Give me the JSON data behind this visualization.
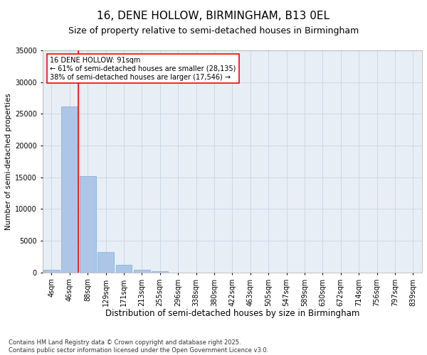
{
  "title": "16, DENE HOLLOW, BIRMINGHAM, B13 0EL",
  "subtitle": "Size of property relative to semi-detached houses in Birmingham",
  "xlabel": "Distribution of semi-detached houses by size in Birmingham",
  "ylabel": "Number of semi-detached properties",
  "categories": [
    "4sqm",
    "46sqm",
    "88sqm",
    "129sqm",
    "171sqm",
    "213sqm",
    "255sqm",
    "296sqm",
    "338sqm",
    "380sqm",
    "422sqm",
    "463sqm",
    "505sqm",
    "547sqm",
    "589sqm",
    "630sqm",
    "672sqm",
    "714sqm",
    "756sqm",
    "797sqm",
    "839sqm"
  ],
  "values": [
    400,
    26100,
    15200,
    3200,
    1200,
    400,
    180,
    20,
    0,
    0,
    0,
    0,
    0,
    0,
    0,
    0,
    0,
    0,
    0,
    0,
    0
  ],
  "bar_color": "#adc6e8",
  "bar_edge_color": "#7aabcf",
  "vline_x_index": 2,
  "vline_color": "red",
  "ylim": [
    0,
    35000
  ],
  "yticks": [
    0,
    5000,
    10000,
    15000,
    20000,
    25000,
    30000,
    35000
  ],
  "annotation_text": "16 DENE HOLLOW: 91sqm\n← 61% of semi-detached houses are smaller (28,135)\n38% of semi-detached houses are larger (17,546) →",
  "annotation_box_color": "red",
  "grid_color": "#ccd9e8",
  "bg_color": "#e8eef5",
  "footer_line1": "Contains HM Land Registry data © Crown copyright and database right 2025.",
  "footer_line2": "Contains public sector information licensed under the Open Government Licence v3.0.",
  "title_fontsize": 11,
  "subtitle_fontsize": 9,
  "xlabel_fontsize": 8.5,
  "ylabel_fontsize": 7.5,
  "tick_fontsize": 7,
  "annotation_fontsize": 7,
  "footer_fontsize": 6
}
